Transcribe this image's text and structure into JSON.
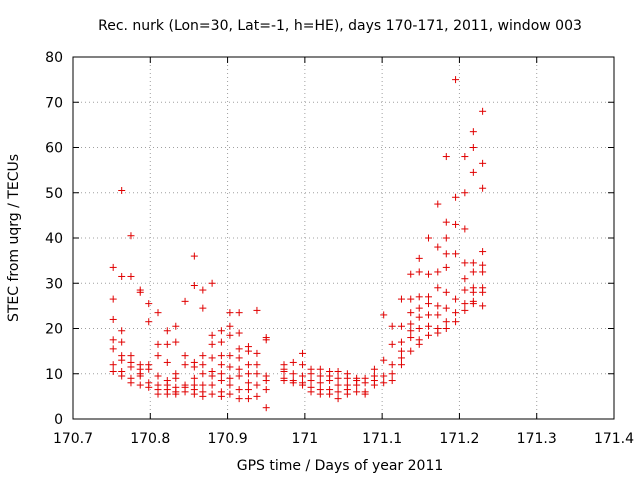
{
  "chart_data": {
    "type": "scatter",
    "title": "Rec. nurk (Lon=30, Lat=-1, h=HE), days 170-171, 2011, window 003",
    "xlabel": "GPS time / Days of year 2011",
    "ylabel": "STEC from uqrg / TECUs",
    "xlim": [
      170.7,
      171.4
    ],
    "ylim": [
      0,
      80
    ],
    "xticks": [
      "170.7",
      "170.8",
      "170.9",
      "171",
      "171.1",
      "171.2",
      "171.3",
      "171.4"
    ],
    "yticks": [
      "0",
      "10",
      "20",
      "30",
      "40",
      "50",
      "60",
      "70",
      "80"
    ],
    "grid": true,
    "marker": "+",
    "color": "#e00000",
    "points": [
      [
        170.752,
        33.5
      ],
      [
        170.752,
        26.5
      ],
      [
        170.752,
        22.0
      ],
      [
        170.752,
        17.5
      ],
      [
        170.752,
        15.5
      ],
      [
        170.752,
        12.0
      ],
      [
        170.752,
        10.5
      ],
      [
        170.763,
        50.5
      ],
      [
        170.763,
        31.5
      ],
      [
        170.763,
        19.5
      ],
      [
        170.763,
        17.0
      ],
      [
        170.763,
        14.0
      ],
      [
        170.763,
        13.0
      ],
      [
        170.763,
        10.5
      ],
      [
        170.763,
        9.5
      ],
      [
        170.775,
        40.5
      ],
      [
        170.775,
        31.5
      ],
      [
        170.775,
        14.0
      ],
      [
        170.775,
        12.5
      ],
      [
        170.775,
        11.5
      ],
      [
        170.775,
        9.0
      ],
      [
        170.775,
        8.0
      ],
      [
        170.787,
        28.5
      ],
      [
        170.787,
        28.0
      ],
      [
        170.787,
        12.0
      ],
      [
        170.787,
        11.0
      ],
      [
        170.787,
        10.0
      ],
      [
        170.787,
        9.5
      ],
      [
        170.787,
        7.5
      ],
      [
        170.798,
        25.5
      ],
      [
        170.798,
        21.5
      ],
      [
        170.798,
        12.0
      ],
      [
        170.798,
        11.0
      ],
      [
        170.798,
        8.0
      ],
      [
        170.798,
        7.0
      ],
      [
        170.81,
        23.5
      ],
      [
        170.81,
        16.5
      ],
      [
        170.81,
        14.0
      ],
      [
        170.81,
        9.5
      ],
      [
        170.81,
        7.5
      ],
      [
        170.81,
        6.5
      ],
      [
        170.81,
        5.5
      ],
      [
        170.822,
        19.5
      ],
      [
        170.822,
        16.5
      ],
      [
        170.822,
        12.5
      ],
      [
        170.822,
        8.5
      ],
      [
        170.822,
        7.5
      ],
      [
        170.822,
        6.5
      ],
      [
        170.822,
        5.5
      ],
      [
        170.833,
        20.5
      ],
      [
        170.833,
        17.0
      ],
      [
        170.833,
        10.0
      ],
      [
        170.833,
        9.0
      ],
      [
        170.833,
        7.0
      ],
      [
        170.833,
        6.0
      ],
      [
        170.833,
        5.5
      ],
      [
        170.845,
        26.0
      ],
      [
        170.845,
        14.0
      ],
      [
        170.845,
        12.0
      ],
      [
        170.845,
        7.5
      ],
      [
        170.845,
        7.0
      ],
      [
        170.845,
        6.0
      ],
      [
        170.857,
        36.0
      ],
      [
        170.857,
        29.5
      ],
      [
        170.857,
        12.5
      ],
      [
        170.857,
        11.5
      ],
      [
        170.857,
        9.0
      ],
      [
        170.857,
        7.5
      ],
      [
        170.857,
        6.5
      ],
      [
        170.857,
        5.5
      ],
      [
        170.868,
        28.5
      ],
      [
        170.868,
        24.5
      ],
      [
        170.868,
        14.0
      ],
      [
        170.868,
        12.0
      ],
      [
        170.868,
        10.0
      ],
      [
        170.868,
        7.5
      ],
      [
        170.868,
        6.0
      ],
      [
        170.868,
        5.0
      ],
      [
        170.88,
        30.0
      ],
      [
        170.88,
        18.5
      ],
      [
        170.88,
        16.5
      ],
      [
        170.88,
        13.5
      ],
      [
        170.88,
        10.5
      ],
      [
        170.88,
        9.5
      ],
      [
        170.88,
        7.5
      ],
      [
        170.88,
        5.5
      ],
      [
        170.892,
        19.5
      ],
      [
        170.892,
        17.0
      ],
      [
        170.892,
        14.0
      ],
      [
        170.892,
        12.0
      ],
      [
        170.892,
        10.0
      ],
      [
        170.892,
        8.5
      ],
      [
        170.892,
        6.0
      ],
      [
        170.892,
        5.0
      ],
      [
        170.903,
        23.5
      ],
      [
        170.903,
        20.5
      ],
      [
        170.903,
        18.5
      ],
      [
        170.903,
        14.0
      ],
      [
        170.903,
        11.5
      ],
      [
        170.903,
        9.0
      ],
      [
        170.903,
        7.5
      ],
      [
        170.903,
        5.5
      ],
      [
        170.915,
        23.5
      ],
      [
        170.915,
        19.0
      ],
      [
        170.915,
        15.5
      ],
      [
        170.915,
        13.5
      ],
      [
        170.915,
        11.0
      ],
      [
        170.915,
        9.5
      ],
      [
        170.915,
        6.5
      ],
      [
        170.915,
        4.5
      ],
      [
        170.927,
        16.0
      ],
      [
        170.927,
        15.0
      ],
      [
        170.927,
        12.0
      ],
      [
        170.927,
        10.0
      ],
      [
        170.927,
        8.0
      ],
      [
        170.927,
        6.5
      ],
      [
        170.927,
        4.5
      ],
      [
        170.938,
        24.0
      ],
      [
        170.938,
        14.5
      ],
      [
        170.938,
        12.0
      ],
      [
        170.938,
        10.0
      ],
      [
        170.938,
        7.5
      ],
      [
        170.938,
        5.0
      ],
      [
        170.95,
        18.0
      ],
      [
        170.95,
        17.5
      ],
      [
        170.95,
        9.5
      ],
      [
        170.95,
        8.5
      ],
      [
        170.95,
        6.5
      ],
      [
        170.95,
        2.5
      ],
      [
        170.973,
        12.0
      ],
      [
        170.973,
        11.0
      ],
      [
        170.973,
        10.5
      ],
      [
        170.973,
        9.0
      ],
      [
        170.973,
        8.5
      ],
      [
        170.985,
        12.5
      ],
      [
        170.985,
        10.0
      ],
      [
        170.985,
        8.5
      ],
      [
        170.985,
        8.0
      ],
      [
        170.997,
        14.5
      ],
      [
        170.997,
        12.0
      ],
      [
        170.997,
        9.5
      ],
      [
        170.997,
        8.0
      ],
      [
        170.997,
        7.5
      ],
      [
        171.008,
        11.0
      ],
      [
        171.008,
        10.0
      ],
      [
        171.008,
        8.5
      ],
      [
        171.008,
        7.0
      ],
      [
        171.008,
        6.0
      ],
      [
        171.02,
        11.0
      ],
      [
        171.02,
        9.5
      ],
      [
        171.02,
        8.0
      ],
      [
        171.02,
        6.5
      ],
      [
        171.02,
        5.5
      ],
      [
        171.032,
        10.5
      ],
      [
        171.032,
        9.5
      ],
      [
        171.032,
        8.5
      ],
      [
        171.032,
        6.5
      ],
      [
        171.032,
        5.5
      ],
      [
        171.043,
        10.5
      ],
      [
        171.043,
        9.0
      ],
      [
        171.043,
        7.5
      ],
      [
        171.043,
        6.0
      ],
      [
        171.043,
        4.5
      ],
      [
        171.055,
        10.0
      ],
      [
        171.055,
        9.0
      ],
      [
        171.055,
        7.5
      ],
      [
        171.055,
        6.5
      ],
      [
        171.055,
        5.5
      ],
      [
        171.067,
        9.0
      ],
      [
        171.067,
        8.5
      ],
      [
        171.067,
        7.5
      ],
      [
        171.067,
        6.0
      ],
      [
        171.078,
        9.0
      ],
      [
        171.078,
        8.0
      ],
      [
        171.078,
        6.0
      ],
      [
        171.078,
        5.5
      ],
      [
        171.09,
        11.0
      ],
      [
        171.09,
        9.5
      ],
      [
        171.09,
        8.5
      ],
      [
        171.09,
        7.5
      ],
      [
        171.102,
        23.0
      ],
      [
        171.102,
        13.0
      ],
      [
        171.102,
        9.5
      ],
      [
        171.102,
        8.0
      ],
      [
        171.113,
        20.5
      ],
      [
        171.113,
        16.5
      ],
      [
        171.113,
        12.0
      ],
      [
        171.113,
        10.0
      ],
      [
        171.113,
        8.5
      ],
      [
        171.125,
        26.5
      ],
      [
        171.125,
        20.5
      ],
      [
        171.125,
        17.0
      ],
      [
        171.125,
        15.0
      ],
      [
        171.125,
        13.5
      ],
      [
        171.125,
        12.0
      ],
      [
        171.137,
        32.0
      ],
      [
        171.137,
        26.5
      ],
      [
        171.137,
        23.5
      ],
      [
        171.137,
        21.0
      ],
      [
        171.137,
        19.5
      ],
      [
        171.137,
        18.0
      ],
      [
        171.137,
        15.0
      ],
      [
        171.148,
        35.5
      ],
      [
        171.148,
        32.5
      ],
      [
        171.148,
        27.0
      ],
      [
        171.148,
        24.5
      ],
      [
        171.148,
        22.5
      ],
      [
        171.148,
        20.0
      ],
      [
        171.148,
        17.5
      ],
      [
        171.148,
        16.5
      ],
      [
        171.16,
        40.0
      ],
      [
        171.16,
        32.0
      ],
      [
        171.16,
        27.0
      ],
      [
        171.16,
        25.5
      ],
      [
        171.16,
        23.0
      ],
      [
        171.16,
        20.5
      ],
      [
        171.16,
        18.5
      ],
      [
        171.172,
        47.5
      ],
      [
        171.172,
        38.0
      ],
      [
        171.172,
        32.5
      ],
      [
        171.172,
        29.0
      ],
      [
        171.172,
        25.0
      ],
      [
        171.172,
        23.0
      ],
      [
        171.172,
        20.0
      ],
      [
        171.172,
        19.0
      ],
      [
        171.183,
        58.0
      ],
      [
        171.183,
        43.5
      ],
      [
        171.183,
        40.0
      ],
      [
        171.183,
        36.5
      ],
      [
        171.183,
        33.5
      ],
      [
        171.183,
        28.0
      ],
      [
        171.183,
        24.5
      ],
      [
        171.183,
        21.5
      ],
      [
        171.183,
        20.0
      ],
      [
        171.195,
        75.0
      ],
      [
        171.195,
        49.0
      ],
      [
        171.195,
        43.0
      ],
      [
        171.195,
        36.5
      ],
      [
        171.195,
        26.5
      ],
      [
        171.195,
        23.5
      ],
      [
        171.195,
        21.5
      ],
      [
        171.207,
        58.0
      ],
      [
        171.207,
        50.0
      ],
      [
        171.207,
        42.0
      ],
      [
        171.207,
        34.5
      ],
      [
        171.207,
        31.0
      ],
      [
        171.207,
        28.5
      ],
      [
        171.207,
        25.5
      ],
      [
        171.207,
        24.0
      ],
      [
        171.218,
        63.5
      ],
      [
        171.218,
        60.0
      ],
      [
        171.218,
        54.5
      ],
      [
        171.218,
        34.5
      ],
      [
        171.218,
        32.5
      ],
      [
        171.218,
        29.0
      ],
      [
        171.218,
        28.0
      ],
      [
        171.218,
        26.0
      ],
      [
        171.218,
        25.5
      ],
      [
        171.23,
        68.0
      ],
      [
        171.23,
        56.5
      ],
      [
        171.23,
        51.0
      ],
      [
        171.23,
        37.0
      ],
      [
        171.23,
        34.0
      ],
      [
        171.23,
        32.5
      ],
      [
        171.23,
        29.0
      ],
      [
        171.23,
        28.0
      ],
      [
        171.23,
        25.0
      ]
    ]
  }
}
